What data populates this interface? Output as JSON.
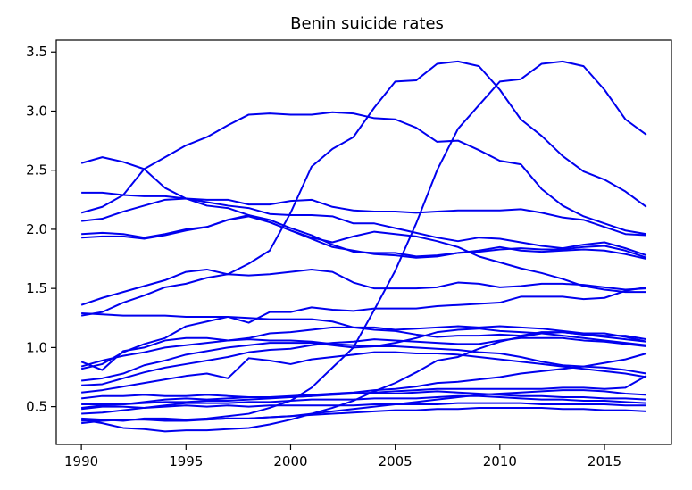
{
  "chart_data": {
    "type": "line",
    "title": "Benin suicide rates",
    "xlabel": "",
    "ylabel": "",
    "xlim": [
      1988.8,
      2018.2
    ],
    "ylim": [
      0.18,
      3.6
    ],
    "xticks": [
      1990,
      1995,
      2000,
      2005,
      2010,
      2015
    ],
    "yticks": [
      0.5,
      1.0,
      1.5,
      2.0,
      2.5,
      3.0,
      3.5
    ],
    "ytick_labels": [
      "0.5",
      "1.0",
      "1.5",
      "2.0",
      "2.5",
      "3.0",
      "3.5"
    ],
    "grid": false,
    "legend": "none",
    "line_color": "#0000ee",
    "x": [
      1990,
      1991,
      1992,
      1993,
      1994,
      1995,
      1996,
      1997,
      1998,
      1999,
      2000,
      2001,
      2002,
      2003,
      2004,
      2005,
      2006,
      2007,
      2008,
      2009,
      2010,
      2011,
      2012,
      2013,
      2014,
      2015,
      2016,
      2017
    ],
    "series": [
      {
        "values": [
          0.4,
          0.39,
          0.38,
          0.4,
          0.4,
          0.39,
          0.4,
          0.42,
          0.44,
          0.49,
          0.55,
          0.66,
          0.83,
          1.0,
          1.32,
          1.65,
          2.05,
          2.5,
          2.85,
          3.05,
          3.25,
          3.27,
          3.4,
          3.42,
          3.38,
          3.18,
          2.93,
          2.8
        ]
      },
      {
        "values": [
          2.56,
          2.61,
          2.57,
          2.51,
          2.35,
          2.26,
          2.2,
          2.18,
          2.12,
          2.06,
          1.99,
          1.93,
          1.89,
          1.94,
          1.98,
          1.96,
          1.94,
          1.9,
          1.85,
          1.77,
          1.72,
          1.67,
          1.63,
          1.58,
          1.52,
          1.49,
          1.47,
          1.47
        ]
      },
      {
        "values": [
          2.14,
          2.19,
          2.29,
          2.51,
          2.61,
          2.71,
          2.78,
          2.88,
          2.97,
          2.98,
          2.97,
          2.97,
          2.99,
          2.98,
          2.94,
          2.93,
          2.86,
          2.74,
          2.75,
          2.67,
          2.58,
          2.55,
          2.34,
          2.2,
          2.11,
          2.05,
          1.99,
          1.96
        ]
      },
      {
        "values": [
          2.31,
          2.31,
          2.29,
          2.28,
          2.28,
          2.26,
          2.25,
          2.25,
          2.21,
          2.21,
          2.24,
          2.25,
          2.19,
          2.16,
          2.15,
          2.15,
          2.14,
          2.15,
          2.16,
          2.16,
          2.16,
          2.17,
          2.14,
          2.1,
          2.08,
          2.02,
          1.96,
          1.95
        ]
      },
      {
        "values": [
          2.07,
          2.09,
          2.15,
          2.2,
          2.25,
          2.26,
          2.23,
          2.2,
          2.18,
          2.13,
          2.12,
          2.12,
          2.11,
          2.05,
          2.05,
          2.01,
          1.97,
          1.93,
          1.9,
          1.93,
          1.92,
          1.89,
          1.86,
          1.84,
          1.87,
          1.89,
          1.84,
          1.78
        ]
      },
      {
        "values": [
          1.96,
          1.97,
          1.96,
          1.93,
          1.96,
          2.0,
          2.02,
          2.08,
          2.12,
          2.08,
          2.01,
          1.95,
          1.87,
          1.81,
          1.8,
          1.8,
          1.77,
          1.78,
          1.8,
          1.81,
          1.83,
          1.84,
          1.83,
          1.83,
          1.85,
          1.86,
          1.82,
          1.76
        ]
      },
      {
        "values": [
          1.93,
          1.94,
          1.94,
          1.92,
          1.95,
          1.99,
          2.02,
          2.08,
          2.11,
          2.06,
          1.99,
          1.92,
          1.85,
          1.82,
          1.79,
          1.78,
          1.76,
          1.77,
          1.8,
          1.82,
          1.85,
          1.82,
          1.81,
          1.82,
          1.83,
          1.82,
          1.79,
          1.75
        ]
      },
      {
        "values": [
          1.36,
          1.42,
          1.47,
          1.52,
          1.57,
          1.64,
          1.66,
          1.62,
          1.61,
          1.62,
          1.64,
          1.66,
          1.64,
          1.55,
          1.5,
          1.5,
          1.5,
          1.51,
          1.55,
          1.54,
          1.51,
          1.52,
          1.54,
          1.54,
          1.53,
          1.51,
          1.49,
          1.5
        ]
      },
      {
        "values": [
          0.82,
          0.86,
          0.96,
          1.03,
          1.08,
          1.18,
          1.22,
          1.26,
          1.21,
          1.3,
          1.3,
          1.34,
          1.32,
          1.31,
          1.33,
          1.33,
          1.33,
          1.35,
          1.36,
          1.37,
          1.38,
          1.43,
          1.43,
          1.43,
          1.41,
          1.42,
          1.48,
          1.51
        ]
      },
      {
        "values": [
          1.27,
          1.3,
          1.38,
          1.44,
          1.51,
          1.54,
          1.59,
          1.62,
          1.71,
          1.82,
          2.14,
          2.53,
          2.68,
          2.78,
          3.03,
          3.25,
          3.26,
          3.4,
          3.42,
          3.38,
          3.18,
          2.93,
          2.79,
          2.62,
          2.49,
          2.42,
          2.32,
          2.19
        ]
      },
      {
        "values": [
          1.29,
          1.28,
          1.27,
          1.27,
          1.27,
          1.26,
          1.26,
          1.26,
          1.25,
          1.24,
          1.24,
          1.24,
          1.22,
          1.17,
          1.15,
          1.14,
          1.11,
          1.09,
          1.1,
          1.1,
          1.11,
          1.1,
          1.13,
          1.13,
          1.11,
          1.1,
          1.1,
          1.07
        ]
      },
      {
        "values": [
          0.88,
          0.81,
          0.97,
          1.0,
          1.06,
          1.08,
          1.08,
          1.06,
          1.08,
          1.12,
          1.13,
          1.15,
          1.17,
          1.17,
          1.17,
          1.15,
          1.16,
          1.17,
          1.18,
          1.17,
          1.18,
          1.17,
          1.16,
          1.14,
          1.12,
          1.12,
          1.09,
          1.05
        ]
      },
      {
        "values": [
          0.72,
          0.74,
          0.78,
          0.85,
          0.89,
          0.94,
          0.97,
          1.0,
          1.02,
          1.04,
          1.04,
          1.04,
          1.02,
          1.0,
          1.01,
          1.04,
          1.08,
          1.13,
          1.15,
          1.16,
          1.14,
          1.13,
          1.12,
          1.1,
          1.08,
          1.06,
          1.04,
          1.02
        ]
      },
      {
        "values": [
          0.68,
          0.69,
          0.74,
          0.79,
          0.83,
          0.86,
          0.89,
          0.92,
          0.96,
          0.98,
          0.99,
          1.02,
          1.04,
          1.05,
          1.07,
          1.06,
          1.05,
          1.04,
          1.03,
          1.03,
          1.06,
          1.08,
          1.08,
          1.08,
          1.06,
          1.05,
          1.03,
          1.01
        ]
      },
      {
        "values": [
          0.84,
          0.89,
          0.93,
          0.96,
          1.0,
          1.02,
          1.04,
          1.06,
          1.07,
          1.06,
          1.06,
          1.05,
          1.03,
          1.02,
          1.01,
          1.01,
          1.0,
          0.99,
          0.98,
          0.96,
          0.95,
          0.92,
          0.88,
          0.85,
          0.84,
          0.83,
          0.81,
          0.78
        ]
      },
      {
        "values": [
          0.62,
          0.64,
          0.67,
          0.7,
          0.73,
          0.76,
          0.78,
          0.74,
          0.91,
          0.89,
          0.86,
          0.9,
          0.92,
          0.94,
          0.96,
          0.96,
          0.95,
          0.95,
          0.94,
          0.92,
          0.9,
          0.88,
          0.86,
          0.84,
          0.82,
          0.8,
          0.78,
          0.75
        ]
      },
      {
        "values": [
          0.57,
          0.59,
          0.59,
          0.6,
          0.59,
          0.59,
          0.6,
          0.59,
          0.58,
          0.58,
          0.59,
          0.6,
          0.61,
          0.62,
          0.64,
          0.65,
          0.67,
          0.7,
          0.71,
          0.73,
          0.75,
          0.78,
          0.8,
          0.82,
          0.84,
          0.87,
          0.9,
          0.95
        ]
      },
      {
        "values": [
          0.52,
          0.52,
          0.52,
          0.53,
          0.54,
          0.54,
          0.55,
          0.55,
          0.56,
          0.57,
          0.58,
          0.59,
          0.6,
          0.61,
          0.62,
          0.63,
          0.64,
          0.65,
          0.65,
          0.65,
          0.65,
          0.65,
          0.65,
          0.66,
          0.66,
          0.65,
          0.66,
          0.76
        ]
      },
      {
        "values": [
          0.49,
          0.51,
          0.52,
          0.54,
          0.56,
          0.57,
          0.56,
          0.57,
          0.58,
          0.58,
          0.58,
          0.59,
          0.61,
          0.61,
          0.61,
          0.61,
          0.62,
          0.63,
          0.62,
          0.61,
          0.6,
          0.59,
          0.59,
          0.58,
          0.58,
          0.57,
          0.57,
          0.56
        ]
      },
      {
        "values": [
          0.44,
          0.45,
          0.47,
          0.49,
          0.51,
          0.53,
          0.53,
          0.53,
          0.54,
          0.54,
          0.55,
          0.56,
          0.56,
          0.56,
          0.57,
          0.57,
          0.57,
          0.58,
          0.59,
          0.59,
          0.58,
          0.57,
          0.56,
          0.56,
          0.55,
          0.55,
          0.54,
          0.53
        ]
      },
      {
        "values": [
          0.39,
          0.36,
          0.32,
          0.31,
          0.29,
          0.3,
          0.3,
          0.31,
          0.32,
          0.35,
          0.39,
          0.44,
          0.49,
          0.55,
          0.63,
          0.7,
          0.79,
          0.89,
          0.92,
          0.99,
          1.05,
          1.09,
          1.12,
          1.13,
          1.11,
          1.09,
          1.07,
          1.05
        ]
      },
      {
        "values": [
          0.38,
          0.39,
          0.39,
          0.39,
          0.38,
          0.38,
          0.39,
          0.4,
          0.4,
          0.41,
          0.42,
          0.44,
          0.46,
          0.48,
          0.5,
          0.52,
          0.54,
          0.56,
          0.58,
          0.6,
          0.61,
          0.62,
          0.63,
          0.64,
          0.64,
          0.63,
          0.61,
          0.6
        ]
      },
      {
        "values": [
          0.36,
          0.38,
          0.39,
          0.39,
          0.39,
          0.39,
          0.39,
          0.4,
          0.4,
          0.41,
          0.42,
          0.43,
          0.44,
          0.45,
          0.46,
          0.47,
          0.47,
          0.48,
          0.48,
          0.49,
          0.49,
          0.49,
          0.49,
          0.48,
          0.48,
          0.47,
          0.47,
          0.46
        ]
      },
      {
        "values": [
          0.48,
          0.5,
          0.5,
          0.49,
          0.5,
          0.51,
          0.5,
          0.51,
          0.5,
          0.51,
          0.51,
          0.51,
          0.51,
          0.51,
          0.52,
          0.52,
          0.52,
          0.52,
          0.53,
          0.53,
          0.53,
          0.53,
          0.52,
          0.52,
          0.52,
          0.52,
          0.51,
          0.51
        ]
      }
    ]
  }
}
